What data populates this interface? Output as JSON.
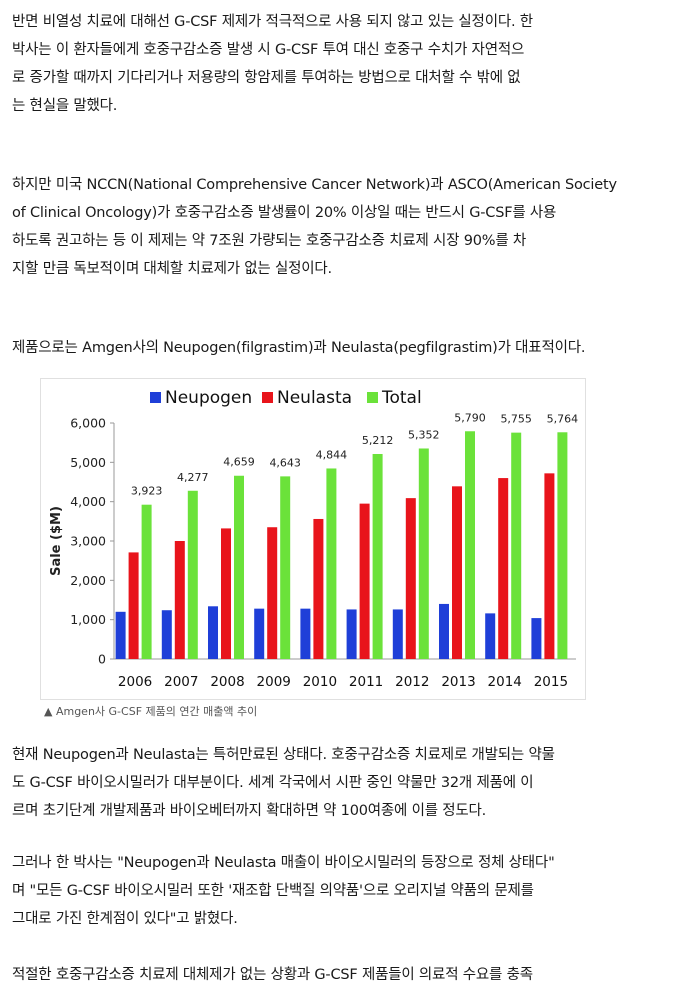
{
  "paragraphs": [
    {
      "lines": [
        "반면 비열성 치료에 대해선 G-CSF 제제가 적극적으로 사용 되지 않고 있는 실정이다. 한",
        "박사는 이 환자들에게 호중구감소증 발생 시 G-CSF 투여 대신 호중구 수치가 자연적으",
        "로 증가할 때까지 기다리거나 저용량의 항암제를 투여하는 방법으로 대처할 수 밖에 없",
        "는 현실을 말했다."
      ]
    },
    {
      "lines": [
        "하지만 미국 NCCN(National Comprehensive Cancer Network)과 ASCO(American Society",
        "of Clinical Oncology)가 호중구감소증 발생률이 20% 이상일 때는 반드시 G-CSF를 사용",
        "하도록 권고하는 등 이 제제는 약 7조원 가량되는 호중구감소증 치료제 시장 90%를 차",
        "지할 만큼 독보적이며 대체할 치료제가 없는 실정이다."
      ]
    },
    {
      "lines": [
        "제품으로는 Amgen사의 Neupogen(filgrastim)과 Neulasta(pegfilgrastim)가 대표적이다."
      ]
    },
    {
      "lines": [
        "현재 Neupogen과 Neulasta는 특허만료된 상태다. 호중구감소증 치료제로 개발되는 약물",
        "도 G-CSF 바이오시밀러가 대부분이다. 세계 각국에서 시판 중인 약물만 32개 제품에 이",
        "르며 초기단계 개발제품과 바이오베터까지 확대하면 약 100여종에 이를 정도다."
      ]
    },
    {
      "lines": [
        "그러나 한 박사는 \"Neupogen과 Neulasta 매출이 바이오시밀러의 등장으로 정체 상태다\"",
        "며 \"모든 G-CSF 바이오시밀러 또한 '재조합 단백질 의약품'으로 오리지널 약품의 문제를",
        "그대로 가진 한계점이 있다\"고 밝혔다."
      ]
    },
    {
      "lines": [
        "적절한 호중구감소증 치료제 대체제가 없는 상황과 G-CSF 제품들이 의료적 수요를 충족"
      ]
    }
  ],
  "caption": "▲ Amgen사 G-CSF 제품의 연간 매출액 추이",
  "chart_data": {
    "type": "bar",
    "categories": [
      "2006",
      "2007",
      "2008",
      "2009",
      "2010",
      "2011",
      "2012",
      "2013",
      "2014",
      "2015"
    ],
    "series": [
      {
        "name": "Neupogen",
        "color": "#1f3fd8",
        "values": [
          1200,
          1240,
          1340,
          1280,
          1280,
          1260,
          1260,
          1400,
          1160,
          1040
        ]
      },
      {
        "name": "Neulasta",
        "color": "#e8141b",
        "values": [
          2710,
          3000,
          3320,
          3350,
          3560,
          3950,
          4090,
          4390,
          4600,
          4720
        ]
      },
      {
        "name": "Total",
        "color": "#6be23a",
        "values": [
          3923,
          4277,
          4659,
          4643,
          4844,
          5212,
          5352,
          5790,
          5755,
          5764
        ]
      }
    ],
    "total_labels": [
      "3,923",
      "4,277",
      "4,659",
      "4,643",
      "4,844",
      "5,212",
      "5,352",
      "5,790",
      "5,755",
      "5,764"
    ],
    "ylabel": "Sale ($M)",
    "ylim": [
      0,
      6000
    ],
    "yticks": [
      "0",
      "1,000",
      "2,000",
      "3,000",
      "4,000",
      "5,000",
      "6,000"
    ],
    "legend_position": "top",
    "grid": false
  }
}
